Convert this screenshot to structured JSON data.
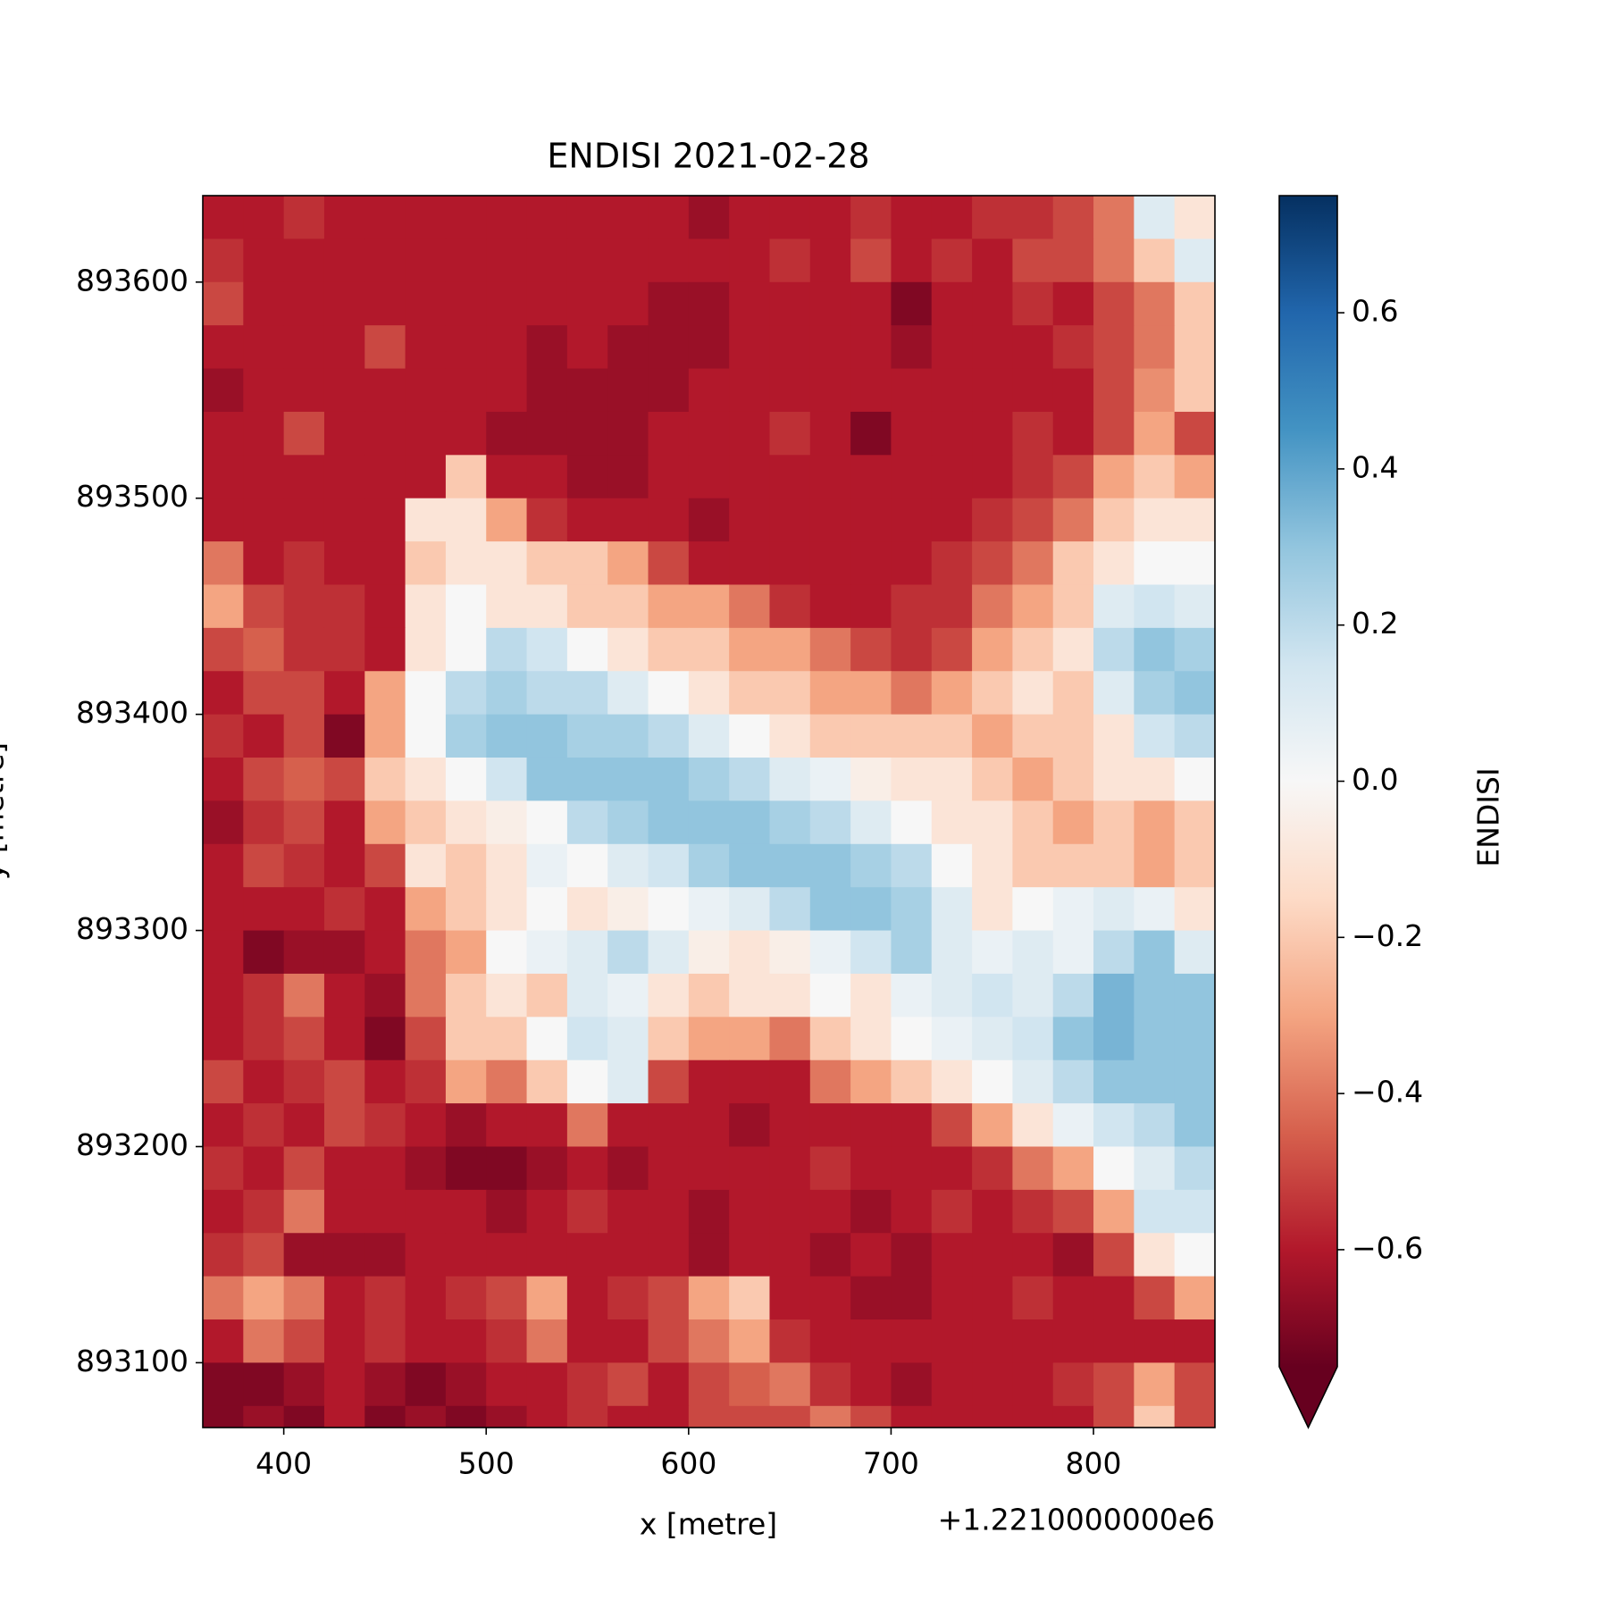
{
  "chart_data": {
    "type": "heatmap",
    "title": "ENDISI 2021-02-28",
    "xlabel": "x [metre]",
    "ylabel": "y [metre]",
    "x_offset_label": "+1.2210000000e6",
    "colorbar_label": "ENDISI",
    "colormap": [
      "#67001f",
      "#b2182b",
      "#d6604d",
      "#f4a582",
      "#fddbc7",
      "#f7f7f7",
      "#d1e5f0",
      "#92c5de",
      "#4393c3",
      "#2166ac",
      "#053061"
    ],
    "clim": [
      -0.75,
      0.75
    ],
    "colorbar_extend": "min",
    "colorbar_ticks": [
      {
        "value": -0.6,
        "label": "−0.6"
      },
      {
        "value": -0.4,
        "label": "−0.4"
      },
      {
        "value": -0.2,
        "label": "−0.2"
      },
      {
        "value": 0,
        "label": "0.0"
      },
      0.2,
      0.4,
      0.6
    ],
    "xlim": [
      360,
      860
    ],
    "ylim": [
      893070,
      893640
    ],
    "xticks": [
      400,
      500,
      600,
      700,
      800
    ],
    "yticks": [
      893100,
      893200,
      893300,
      893400,
      893500,
      893600
    ],
    "x": [
      370,
      390,
      410,
      430,
      450,
      470,
      490,
      510,
      530,
      550,
      570,
      590,
      610,
      630,
      650,
      670,
      690,
      710,
      730,
      750,
      770,
      790,
      810,
      830,
      850
    ],
    "y": [
      893630,
      893610,
      893590,
      893570,
      893550,
      893530,
      893510,
      893490,
      893470,
      893450,
      893430,
      893410,
      893390,
      893370,
      893350,
      893330,
      893310,
      893290,
      893270,
      893250,
      893230,
      893210,
      893190,
      893170,
      893150,
      893130,
      893110,
      893090,
      893070
    ],
    "z": [
      [
        -0.6,
        -0.6,
        -0.55,
        -0.6,
        -0.6,
        -0.6,
        -0.6,
        -0.6,
        -0.6,
        -0.6,
        -0.6,
        -0.6,
        -0.65,
        -0.6,
        -0.6,
        -0.6,
        -0.55,
        -0.6,
        -0.6,
        -0.55,
        -0.55,
        -0.5,
        -0.4,
        0.1,
        -0.1
      ],
      [
        -0.55,
        -0.6,
        -0.6,
        -0.6,
        -0.6,
        -0.6,
        -0.6,
        -0.6,
        -0.6,
        -0.6,
        -0.6,
        -0.6,
        -0.6,
        -0.6,
        -0.55,
        -0.6,
        -0.5,
        -0.6,
        -0.55,
        -0.6,
        -0.5,
        -0.5,
        -0.4,
        -0.2,
        0.1
      ],
      [
        -0.5,
        -0.6,
        -0.6,
        -0.6,
        -0.6,
        -0.6,
        -0.6,
        -0.6,
        -0.6,
        -0.6,
        -0.6,
        -0.65,
        -0.65,
        -0.6,
        -0.6,
        -0.6,
        -0.6,
        -0.7,
        -0.6,
        -0.6,
        -0.55,
        -0.6,
        -0.5,
        -0.4,
        -0.2
      ],
      [
        -0.6,
        -0.6,
        -0.6,
        -0.6,
        -0.5,
        -0.6,
        -0.6,
        -0.6,
        -0.65,
        -0.6,
        -0.65,
        -0.65,
        -0.65,
        -0.6,
        -0.6,
        -0.6,
        -0.6,
        -0.65,
        -0.6,
        -0.6,
        -0.6,
        -0.55,
        -0.5,
        -0.4,
        -0.2
      ],
      [
        -0.65,
        -0.6,
        -0.6,
        -0.6,
        -0.6,
        -0.6,
        -0.6,
        -0.6,
        -0.65,
        -0.65,
        -0.65,
        -0.65,
        -0.6,
        -0.6,
        -0.6,
        -0.6,
        -0.6,
        -0.6,
        -0.6,
        -0.6,
        -0.6,
        -0.6,
        -0.5,
        -0.35,
        -0.2
      ],
      [
        -0.6,
        -0.6,
        -0.5,
        -0.6,
        -0.6,
        -0.6,
        -0.6,
        -0.65,
        -0.65,
        -0.65,
        -0.65,
        -0.6,
        -0.6,
        -0.6,
        -0.55,
        -0.6,
        -0.7,
        -0.6,
        -0.6,
        -0.6,
        -0.55,
        -0.6,
        -0.5,
        -0.3,
        -0.5
      ],
      [
        -0.6,
        -0.6,
        -0.6,
        -0.6,
        -0.6,
        -0.6,
        -0.2,
        -0.6,
        -0.6,
        -0.65,
        -0.65,
        -0.6,
        -0.6,
        -0.6,
        -0.6,
        -0.6,
        -0.6,
        -0.6,
        -0.6,
        -0.6,
        -0.55,
        -0.5,
        -0.3,
        -0.2,
        -0.3
      ],
      [
        -0.6,
        -0.6,
        -0.6,
        -0.6,
        -0.6,
        -0.1,
        -0.1,
        -0.3,
        -0.55,
        -0.6,
        -0.6,
        -0.6,
        -0.65,
        -0.6,
        -0.6,
        -0.6,
        -0.6,
        -0.6,
        -0.6,
        -0.55,
        -0.5,
        -0.4,
        -0.2,
        -0.1,
        -0.1
      ],
      [
        -0.4,
        -0.6,
        -0.55,
        -0.6,
        -0.6,
        -0.2,
        -0.1,
        -0.1,
        -0.2,
        -0.2,
        -0.3,
        -0.5,
        -0.6,
        -0.6,
        -0.6,
        -0.6,
        -0.6,
        -0.6,
        -0.55,
        -0.5,
        -0.4,
        -0.2,
        -0.1,
        0.0,
        0.0
      ],
      [
        -0.3,
        -0.5,
        -0.55,
        -0.55,
        -0.6,
        -0.1,
        0.0,
        -0.1,
        -0.1,
        -0.2,
        -0.2,
        -0.3,
        -0.3,
        -0.4,
        -0.55,
        -0.6,
        -0.6,
        -0.55,
        -0.55,
        -0.4,
        -0.3,
        -0.2,
        0.1,
        0.15,
        0.1
      ],
      [
        -0.5,
        -0.45,
        -0.55,
        -0.55,
        -0.6,
        -0.1,
        0.0,
        0.2,
        0.15,
        0.0,
        -0.1,
        -0.2,
        -0.2,
        -0.3,
        -0.3,
        -0.4,
        -0.5,
        -0.55,
        -0.5,
        -0.3,
        -0.2,
        -0.1,
        0.2,
        0.3,
        0.25
      ],
      [
        -0.6,
        -0.5,
        -0.5,
        -0.6,
        -0.3,
        0.0,
        0.2,
        0.25,
        0.2,
        0.2,
        0.1,
        0.0,
        -0.1,
        -0.2,
        -0.2,
        -0.3,
        -0.3,
        -0.4,
        -0.3,
        -0.2,
        -0.1,
        -0.2,
        0.1,
        0.25,
        0.3
      ],
      [
        -0.55,
        -0.6,
        -0.5,
        -0.7,
        -0.3,
        0.0,
        0.25,
        0.3,
        0.3,
        0.25,
        0.25,
        0.2,
        0.1,
        0.0,
        -0.1,
        -0.2,
        -0.2,
        -0.2,
        -0.2,
        -0.3,
        -0.2,
        -0.2,
        -0.1,
        0.15,
        0.2
      ],
      [
        -0.6,
        -0.5,
        -0.45,
        -0.5,
        -0.2,
        -0.1,
        0.0,
        0.15,
        0.3,
        0.3,
        0.3,
        0.3,
        0.25,
        0.2,
        0.1,
        0.05,
        -0.05,
        -0.1,
        -0.1,
        -0.2,
        -0.3,
        -0.2,
        -0.1,
        -0.1,
        0.0
      ],
      [
        -0.65,
        -0.55,
        -0.5,
        -0.6,
        -0.3,
        -0.2,
        -0.1,
        -0.05,
        0.0,
        0.2,
        0.25,
        0.3,
        0.3,
        0.3,
        0.25,
        0.2,
        0.1,
        0.0,
        -0.1,
        -0.1,
        -0.2,
        -0.3,
        -0.2,
        -0.3,
        -0.2
      ],
      [
        -0.6,
        -0.5,
        -0.55,
        -0.6,
        -0.5,
        -0.1,
        -0.2,
        -0.1,
        0.05,
        0.0,
        0.1,
        0.15,
        0.25,
        0.3,
        0.3,
        0.3,
        0.25,
        0.2,
        0.0,
        -0.1,
        -0.2,
        -0.2,
        -0.2,
        -0.3,
        -0.2
      ],
      [
        -0.6,
        -0.6,
        -0.6,
        -0.55,
        -0.6,
        -0.3,
        -0.2,
        -0.1,
        0.0,
        -0.1,
        -0.05,
        0.0,
        0.05,
        0.1,
        0.2,
        0.3,
        0.3,
        0.25,
        0.1,
        -0.1,
        0.0,
        0.05,
        0.1,
        0.05,
        -0.1
      ],
      [
        -0.6,
        -0.7,
        -0.65,
        -0.65,
        -0.6,
        -0.4,
        -0.3,
        0.0,
        0.05,
        0.1,
        0.2,
        0.1,
        -0.05,
        -0.1,
        -0.05,
        0.05,
        0.15,
        0.25,
        0.1,
        0.05,
        0.1,
        0.05,
        0.2,
        0.3,
        0.1
      ],
      [
        -0.6,
        -0.55,
        -0.4,
        -0.6,
        -0.65,
        -0.4,
        -0.2,
        -0.1,
        -0.2,
        0.1,
        0.05,
        -0.1,
        -0.2,
        -0.1,
        -0.1,
        0.0,
        -0.1,
        0.05,
        0.1,
        0.15,
        0.1,
        0.2,
        0.35,
        0.3,
        0.3
      ],
      [
        -0.6,
        -0.55,
        -0.5,
        -0.6,
        -0.7,
        -0.5,
        -0.2,
        -0.2,
        0.0,
        0.15,
        0.1,
        -0.2,
        -0.3,
        -0.3,
        -0.4,
        -0.2,
        -0.1,
        0.0,
        0.05,
        0.1,
        0.15,
        0.3,
        0.35,
        0.3,
        0.3
      ],
      [
        -0.5,
        -0.6,
        -0.55,
        -0.5,
        -0.6,
        -0.55,
        -0.3,
        -0.4,
        -0.2,
        0.0,
        0.1,
        -0.5,
        -0.6,
        -0.6,
        -0.6,
        -0.4,
        -0.3,
        -0.2,
        -0.1,
        0.0,
        0.1,
        0.2,
        0.3,
        0.3,
        0.3
      ],
      [
        -0.6,
        -0.55,
        -0.6,
        -0.5,
        -0.55,
        -0.6,
        -0.65,
        -0.6,
        -0.6,
        -0.4,
        -0.6,
        -0.6,
        -0.6,
        -0.65,
        -0.6,
        -0.6,
        -0.6,
        -0.6,
        -0.5,
        -0.3,
        -0.1,
        0.05,
        0.15,
        0.2,
        0.3
      ],
      [
        -0.55,
        -0.6,
        -0.5,
        -0.6,
        -0.6,
        -0.65,
        -0.7,
        -0.7,
        -0.65,
        -0.6,
        -0.65,
        -0.6,
        -0.6,
        -0.6,
        -0.6,
        -0.55,
        -0.6,
        -0.6,
        -0.6,
        -0.55,
        -0.4,
        -0.3,
        0.0,
        0.1,
        0.2
      ],
      [
        -0.6,
        -0.55,
        -0.4,
        -0.6,
        -0.6,
        -0.6,
        -0.6,
        -0.65,
        -0.6,
        -0.55,
        -0.6,
        -0.6,
        -0.65,
        -0.6,
        -0.6,
        -0.6,
        -0.65,
        -0.6,
        -0.55,
        -0.6,
        -0.55,
        -0.5,
        -0.3,
        0.15,
        0.15
      ],
      [
        -0.55,
        -0.5,
        -0.65,
        -0.65,
        -0.65,
        -0.6,
        -0.6,
        -0.6,
        -0.6,
        -0.6,
        -0.6,
        -0.6,
        -0.65,
        -0.6,
        -0.6,
        -0.65,
        -0.6,
        -0.65,
        -0.6,
        -0.6,
        -0.6,
        -0.65,
        -0.5,
        -0.1,
        0.0
      ],
      [
        -0.4,
        -0.3,
        -0.4,
        -0.6,
        -0.55,
        -0.6,
        -0.55,
        -0.5,
        -0.3,
        -0.6,
        -0.55,
        -0.5,
        -0.3,
        -0.2,
        -0.6,
        -0.6,
        -0.65,
        -0.65,
        -0.6,
        -0.6,
        -0.55,
        -0.6,
        -0.6,
        -0.5,
        -0.3
      ],
      [
        -0.6,
        -0.4,
        -0.5,
        -0.6,
        -0.55,
        -0.6,
        -0.6,
        -0.55,
        -0.4,
        -0.6,
        -0.6,
        -0.5,
        -0.4,
        -0.3,
        -0.55,
        -0.6,
        -0.6,
        -0.6,
        -0.6,
        -0.6,
        -0.6,
        -0.6,
        -0.6,
        -0.6,
        -0.6
      ],
      [
        -0.7,
        -0.7,
        -0.65,
        -0.6,
        -0.65,
        -0.7,
        -0.65,
        -0.6,
        -0.6,
        -0.55,
        -0.5,
        -0.6,
        -0.5,
        -0.45,
        -0.4,
        -0.55,
        -0.6,
        -0.65,
        -0.6,
        -0.6,
        -0.6,
        -0.55,
        -0.5,
        -0.3,
        -0.5
      ],
      [
        -0.7,
        -0.65,
        -0.7,
        -0.6,
        -0.7,
        -0.65,
        -0.7,
        -0.65,
        -0.6,
        -0.55,
        -0.6,
        -0.6,
        -0.5,
        -0.5,
        -0.5,
        -0.4,
        -0.5,
        -0.6,
        -0.6,
        -0.6,
        -0.6,
        -0.6,
        -0.5,
        -0.2,
        -0.5
      ]
    ]
  }
}
